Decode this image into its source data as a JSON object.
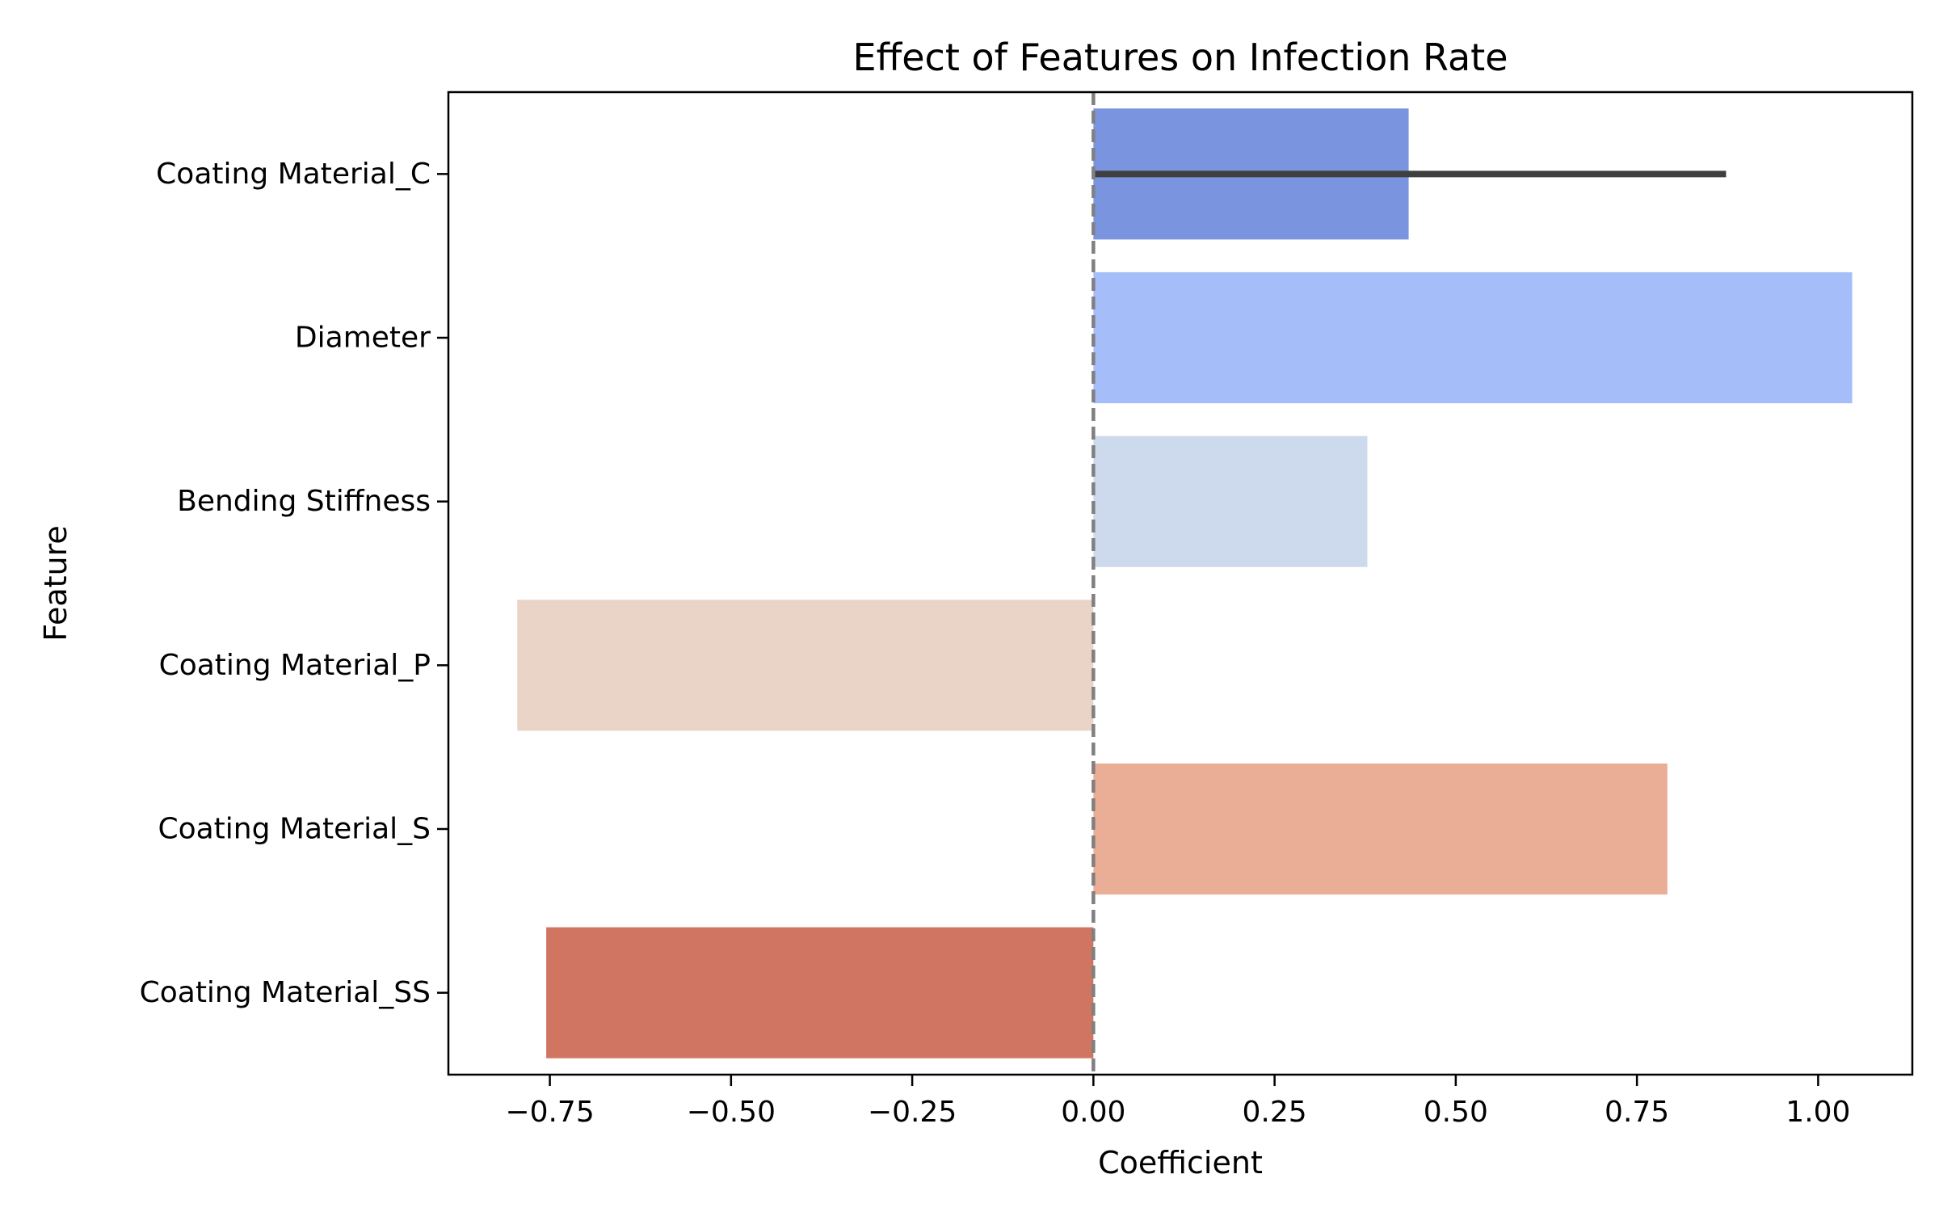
{
  "chart_data": {
    "type": "bar",
    "orientation": "horizontal",
    "title": "Effect of Features on Infection Rate",
    "xlabel": "Coefficient",
    "ylabel": "Feature",
    "xlim": [
      -0.89,
      1.13
    ],
    "xticks": [
      -0.75,
      -0.5,
      -0.25,
      0.0,
      0.25,
      0.5,
      0.75,
      1.0
    ],
    "xtick_labels": [
      "−0.75",
      "−0.50",
      "−0.25",
      "0.00",
      "0.25",
      "0.50",
      "0.75",
      "1.00"
    ],
    "categories": [
      "Coating Material_C",
      "Diameter",
      "Bending Stiffness",
      "Coating Material_P",
      "Coating Material_S",
      "Coating Material_SS"
    ],
    "values": [
      0.435,
      1.047,
      0.378,
      -0.795,
      0.792,
      -0.755
    ],
    "error_bars": [
      {
        "category": "Coating Material_C",
        "low": 0.0,
        "high": 0.873
      }
    ],
    "colors": [
      "#7a94df",
      "#a5befa",
      "#cdd9ec",
      "#ead4c8",
      "#eaad95",
      "#d17563"
    ],
    "reference_line": {
      "x": 0.0,
      "style": "dashed",
      "color": "#808080"
    },
    "grid": false,
    "legend": "none"
  }
}
